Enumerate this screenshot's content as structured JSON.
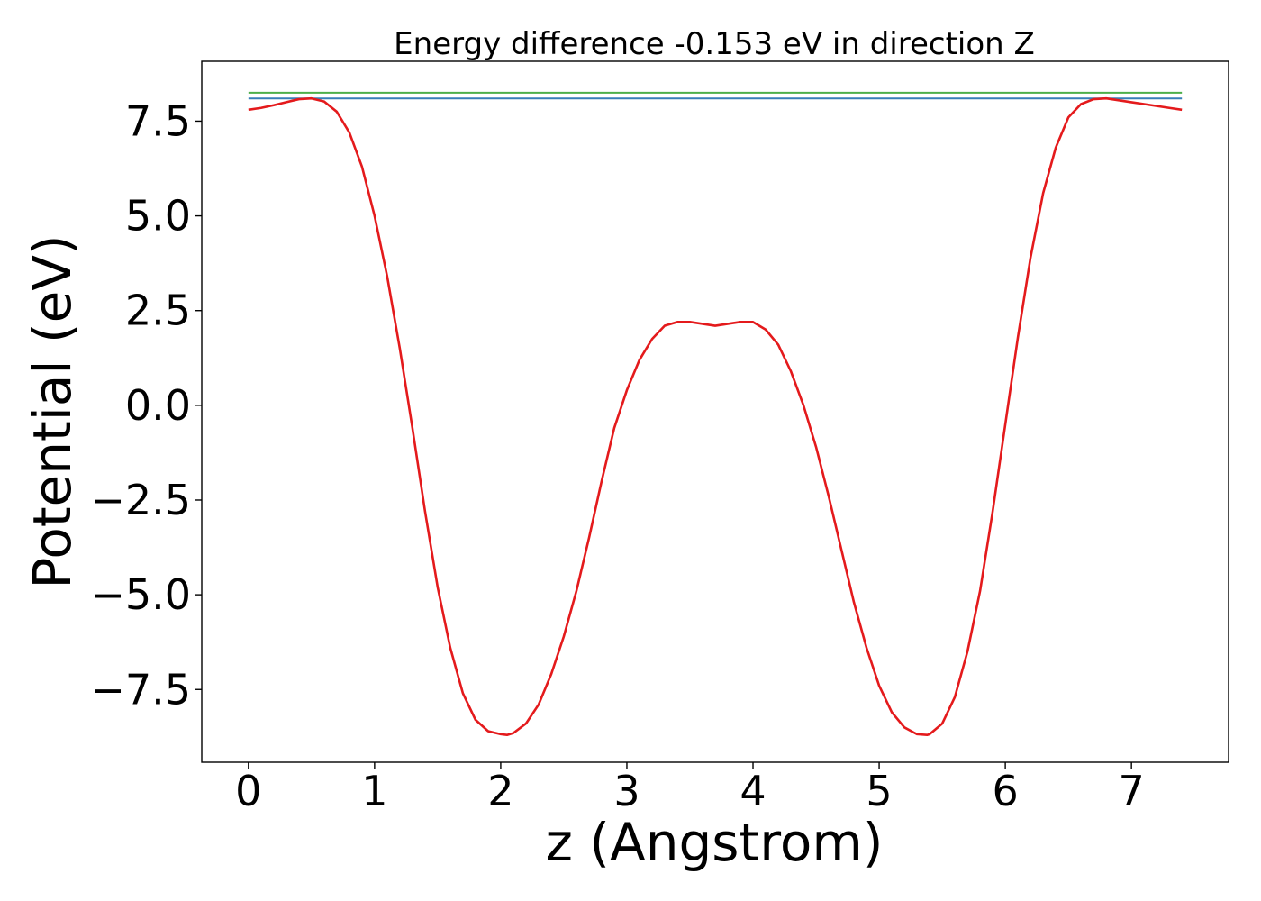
{
  "chart_data": {
    "type": "line",
    "title": "Energy difference -0.153 eV in direction Z",
    "xlabel": "z (Angstrom)",
    "ylabel": "Potential (eV)",
    "xlim": [
      -0.37,
      7.77
    ],
    "ylim": [
      -9.42,
      9.08
    ],
    "xticks": [
      0,
      1,
      2,
      3,
      4,
      5,
      6,
      7
    ],
    "xtick_labels": [
      "0",
      "1",
      "2",
      "3",
      "4",
      "5",
      "6",
      "7"
    ],
    "yticks": [
      7.5,
      5.0,
      2.5,
      0.0,
      -2.5,
      -5.0,
      -7.5
    ],
    "ytick_labels": [
      "7.5",
      "5.0",
      "2.5",
      "0.0",
      "−2.5",
      "−5.0",
      "−7.5"
    ],
    "grid": false,
    "legend": "none",
    "series": [
      {
        "color": "#e41a1c",
        "kind": "curve",
        "x": [
          0.0,
          0.1,
          0.2,
          0.3,
          0.4,
          0.5,
          0.6,
          0.7,
          0.8,
          0.9,
          1.0,
          1.1,
          1.2,
          1.3,
          1.4,
          1.5,
          1.6,
          1.7,
          1.8,
          1.9,
          2.0,
          2.05,
          2.1,
          2.2,
          2.3,
          2.4,
          2.5,
          2.6,
          2.7,
          2.8,
          2.9,
          3.0,
          3.1,
          3.2,
          3.3,
          3.4,
          3.5,
          3.6,
          3.7,
          3.8,
          3.9,
          4.0,
          4.1,
          4.2,
          4.3,
          4.4,
          4.5,
          4.6,
          4.7,
          4.8,
          4.9,
          5.0,
          5.1,
          5.2,
          5.3,
          5.38,
          5.4,
          5.5,
          5.6,
          5.7,
          5.8,
          5.9,
          6.0,
          6.1,
          6.2,
          6.3,
          6.4,
          6.5,
          6.6,
          6.7,
          6.8,
          6.9,
          7.0,
          7.1,
          7.2,
          7.3,
          7.4
        ],
        "y": [
          7.8,
          7.85,
          7.92,
          8.0,
          8.08,
          8.1,
          8.02,
          7.75,
          7.2,
          6.3,
          5.0,
          3.4,
          1.5,
          -0.6,
          -2.8,
          -4.8,
          -6.4,
          -7.6,
          -8.3,
          -8.6,
          -8.68,
          -8.7,
          -8.65,
          -8.4,
          -7.9,
          -7.1,
          -6.1,
          -4.9,
          -3.5,
          -2.0,
          -0.6,
          0.4,
          1.2,
          1.75,
          2.1,
          2.2,
          2.2,
          2.15,
          2.1,
          2.15,
          2.2,
          2.2,
          2.0,
          1.6,
          0.9,
          0.0,
          -1.1,
          -2.4,
          -3.8,
          -5.2,
          -6.4,
          -7.4,
          -8.1,
          -8.5,
          -8.68,
          -8.7,
          -8.68,
          -8.4,
          -7.7,
          -6.5,
          -4.9,
          -2.8,
          -0.5,
          1.8,
          3.9,
          5.6,
          6.8,
          7.6,
          7.95,
          8.08,
          8.1,
          8.05,
          8.0,
          7.95,
          7.9,
          7.85,
          7.8
        ]
      },
      {
        "color": "#377eb8",
        "kind": "hline",
        "x": [
          0.0,
          7.4
        ],
        "y": [
          8.1,
          8.1
        ]
      },
      {
        "color": "#4daf4a",
        "kind": "hline",
        "x": [
          0.0,
          7.4
        ],
        "y": [
          8.25,
          8.25
        ]
      }
    ]
  }
}
